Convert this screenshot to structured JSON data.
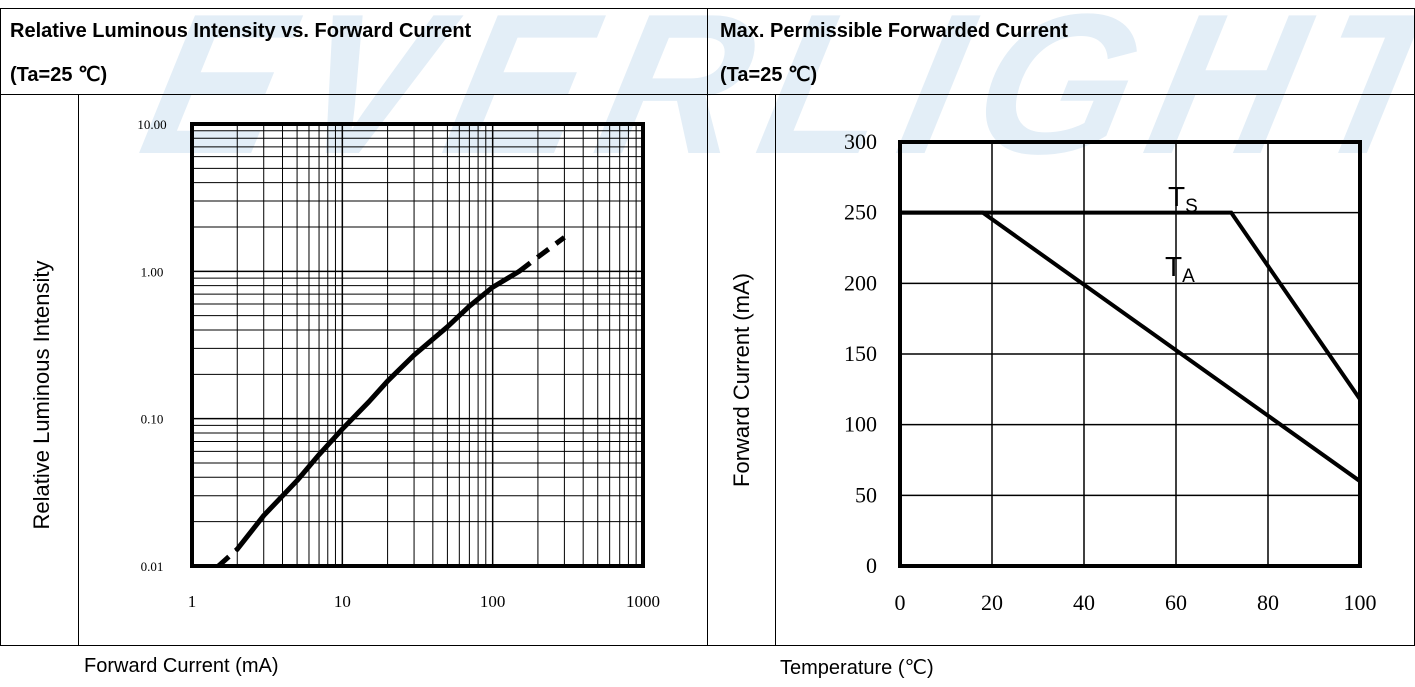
{
  "watermark": "EVERLIGHT",
  "left_panel": {
    "title": "Relative Luminous Intensity vs. Forward Current",
    "condition": "(Ta=25 ℃)",
    "ylabel": "Relative Luminous Intensity",
    "xlabel": "Forward Current (mA)"
  },
  "right_panel": {
    "title": "Max. Permissible Forwarded Current",
    "condition": "(Ta=25 ℃)",
    "ylabel": "Forward Current (mA)",
    "xlabel": "Temperature (℃)"
  },
  "chart_data": [
    {
      "type": "line",
      "xscale": "log",
      "yscale": "log",
      "xlim": [
        1,
        1000
      ],
      "ylim": [
        0.01,
        10
      ],
      "xticks": [
        "1",
        "10",
        "100",
        "1000"
      ],
      "yticks": [
        "10.00",
        "1.00",
        "0.10",
        "0.01"
      ],
      "grid": true,
      "xlabel": "Forward Current (mA)",
      "ylabel": "Relative Luminous Intensity",
      "series": [
        {
          "x": [
            1.5,
            2,
            3,
            5,
            7,
            10,
            15,
            20,
            30,
            50,
            70,
            100,
            150,
            200,
            300
          ],
          "y": [
            0.01,
            0.013,
            0.022,
            0.038,
            0.057,
            0.085,
            0.13,
            0.18,
            0.27,
            0.42,
            0.58,
            0.78,
            1.0,
            1.25,
            1.7
          ]
        }
      ]
    },
    {
      "type": "line",
      "xlim": [
        0,
        100
      ],
      "ylim": [
        0,
        300
      ],
      "xticks": [
        "0",
        "20",
        "40",
        "60",
        "80",
        "100"
      ],
      "yticks": [
        "0",
        "50",
        "100",
        "150",
        "200",
        "250",
        "300"
      ],
      "grid": true,
      "xlabel": "Temperature (℃)",
      "ylabel": "Forward Current (mA)",
      "series": [
        {
          "name": "TS",
          "label_main": "T",
          "label_sub": "S",
          "x": [
            0,
            72,
            100,
            100
          ],
          "y": [
            250,
            250,
            118,
            0
          ]
        },
        {
          "name": "TA",
          "label_main": "T",
          "label_sub": "A",
          "x": [
            0,
            18,
            100,
            100
          ],
          "y": [
            250,
            250,
            60,
            0
          ]
        }
      ]
    }
  ]
}
